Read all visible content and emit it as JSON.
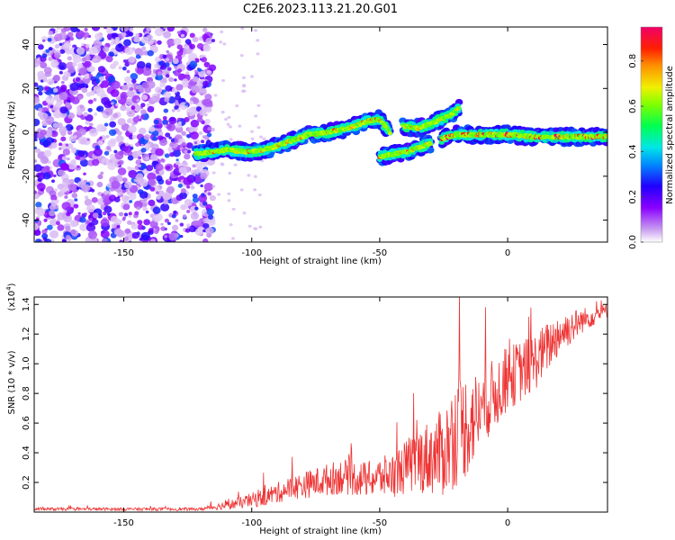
{
  "title": "C2E6.2023.113.21.20.G01",
  "chart_data": [
    {
      "type": "heatmap",
      "xlabel": "Height of straight line (km)",
      "ylabel": "Frequency (Hz)",
      "xlim": [
        -185,
        39
      ],
      "ylim": [
        -50,
        48
      ],
      "xticks": [
        -150,
        -100,
        -50,
        0
      ],
      "yticks": [
        -40,
        -20,
        0,
        20,
        40
      ],
      "grid": false,
      "colorbar": {
        "label": "Normalized spectral amplitude",
        "range": [
          0.0,
          0.95
        ],
        "ticks": [
          0.0,
          0.2,
          0.4,
          0.6,
          0.8
        ],
        "colormap": "rainbow-purple-to-magenta"
      },
      "noise_region_x": [
        -185,
        -115
      ],
      "ridge": {
        "segments": [
          {
            "x": [
              -122,
              -110,
              -100,
              -92,
              -85,
              -78,
              -70,
              -62,
              -55,
              -50,
              -46
            ],
            "y": [
              -10,
              -8,
              -9,
              -7,
              -4,
              -1,
              0,
              2,
              5,
              6,
              0
            ]
          },
          {
            "x": [
              -50,
              -45,
              -40,
              -35,
              -30
            ],
            "y": [
              -11,
              -10,
              -9,
              -7,
              -5
            ]
          },
          {
            "x": [
              -41,
              -35,
              -30,
              -26,
              -22,
              -19
            ],
            "y": [
              3,
              2,
              4,
              6,
              8,
              11
            ]
          },
          {
            "x": [
              -26,
              -20,
              -10,
              0,
              10,
              20,
              30,
              39
            ],
            "y": [
              -3,
              -1,
              -1,
              -1,
              -2,
              -2,
              -2,
              -2
            ]
          }
        ]
      }
    },
    {
      "type": "line",
      "xlabel": "Height of straight line (km)",
      "ylabel": "SNR (10 * v/v)",
      "yscale_label": "(x10",
      "yscale_exponent": "4",
      "xlim": [
        -185,
        39
      ],
      "ylim": [
        0,
        1.45
      ],
      "xticks": [
        -150,
        -100,
        -50,
        0
      ],
      "yticks": [
        0.2,
        0.4,
        0.6,
        0.8,
        1.0,
        1.2,
        1.4
      ],
      "color": "#ee3333",
      "grid": false,
      "trend": {
        "x": [
          -185,
          -150,
          -120,
          -105,
          -95,
          -85,
          -75,
          -65,
          -55,
          -45,
          -35,
          -25,
          -20,
          -15,
          -10,
          -5,
          0,
          10,
          20,
          30,
          39
        ],
        "y": [
          0.02,
          0.02,
          0.02,
          0.06,
          0.1,
          0.16,
          0.2,
          0.24,
          0.22,
          0.25,
          0.35,
          0.4,
          0.55,
          0.6,
          0.7,
          0.8,
          0.9,
          1.0,
          1.2,
          1.3,
          1.36
        ],
        "amp": [
          0.01,
          0.01,
          0.01,
          0.04,
          0.06,
          0.08,
          0.1,
          0.12,
          0.12,
          0.15,
          0.22,
          0.3,
          0.38,
          0.35,
          0.25,
          0.25,
          0.22,
          0.2,
          0.15,
          0.08,
          0.05
        ]
      }
    }
  ]
}
